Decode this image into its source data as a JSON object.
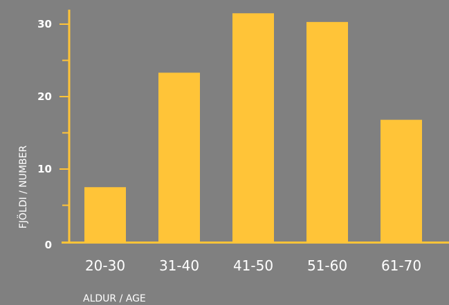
{
  "chart_data": {
    "type": "bar",
    "categories": [
      "20-30",
      "31-40",
      "41-50",
      "51-60",
      "61-70"
    ],
    "values": [
      7.5,
      23.3,
      31.5,
      30.3,
      16.8
    ],
    "xlabel": "ALDUR / AGE",
    "ylabel": "FJÖLDI / NUMBER",
    "ylim": [
      0,
      30
    ],
    "yticks": [
      0,
      10,
      20,
      30
    ],
    "minor_tick_step": 5,
    "grid": false,
    "colors": {
      "background": "#808080",
      "bar": "#FFC438",
      "axis": "#FFC438",
      "text": "#FFFFFF"
    }
  }
}
